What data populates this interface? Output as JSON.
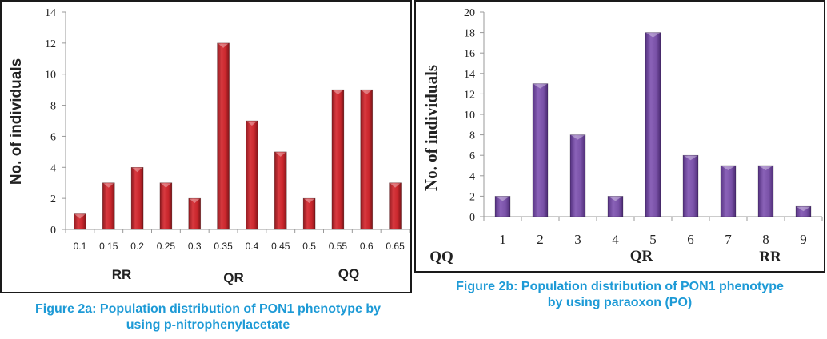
{
  "chart_data": [
    {
      "type": "bar",
      "title": "",
      "xlabel": "",
      "ylabel": "No. of individuals",
      "categories": [
        "0.1",
        "0.15",
        "0.2",
        "0.25",
        "0.3",
        "0.35",
        "0.4",
        "0.45",
        "0.5",
        "0.55",
        "0.6",
        "0.65"
      ],
      "values": [
        1,
        3,
        4,
        3,
        2,
        12,
        7,
        5,
        2,
        9,
        9,
        3
      ],
      "ylim": [
        0,
        14
      ],
      "yticks": [
        "0",
        "2",
        "4",
        "6",
        "8",
        "10",
        "12",
        "14"
      ],
      "groups": [
        "RR",
        "QR",
        "QQ"
      ],
      "bar_color": "#c0282e",
      "caption_line1": "Figure 2a: Population distribution of PON1 phenotype by",
      "caption_line2": "using p-nitrophenylacetate"
    },
    {
      "type": "bar",
      "title": "",
      "xlabel": "",
      "ylabel": "No. of individuals",
      "categories": [
        "1",
        "2",
        "3",
        "4",
        "5",
        "6",
        "7",
        "8",
        "9"
      ],
      "values": [
        2,
        13,
        8,
        2,
        18,
        6,
        5,
        5,
        1
      ],
      "ylim": [
        0,
        20
      ],
      "yticks": [
        "0",
        "2",
        "4",
        "6",
        "8",
        "10",
        "12",
        "14",
        "16",
        "18",
        "20"
      ],
      "groups": [
        "QQ",
        "QR",
        "RR"
      ],
      "bar_color": "#7b52a8",
      "caption_line1": "Figure 2b: Population distribution of PON1 phenotype",
      "caption_line2": "by using paraoxon (PO)"
    }
  ],
  "caption_color": "#1d9ad6"
}
